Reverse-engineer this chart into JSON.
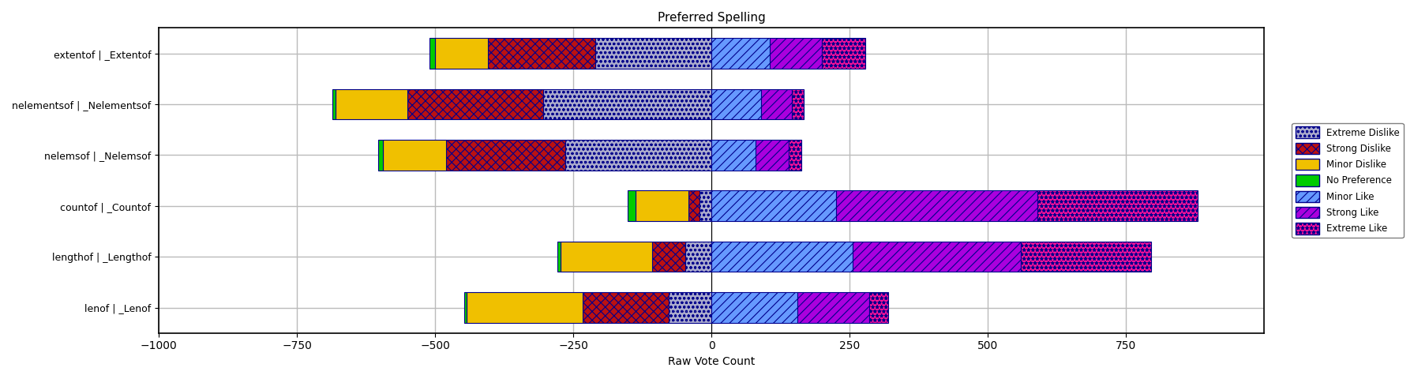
{
  "title": "Preferred Spelling",
  "xlabel": "Raw Vote Count",
  "categories": [
    "extentof | _Extentof",
    "nelementsof | _Nelementsof",
    "nelemsof | _Nelemsof",
    "countof | _Countof",
    "lengthof | _Lengthof",
    "lenof | _Lenof"
  ],
  "segments": [
    {
      "label": "Extreme Dislike",
      "color": "#aaaacc",
      "hatch": "ooo",
      "edge_color": "#00008b",
      "values": [
        -210,
        -305,
        -265,
        -22,
        -48,
        -78
      ]
    },
    {
      "label": "Strong Dislike",
      "color": "#bb1111",
      "hatch": "xxx",
      "edge_color": "#00008b",
      "values": [
        -195,
        -245,
        -215,
        -20,
        -60,
        -155
      ]
    },
    {
      "label": "Minor Dislike",
      "color": "#f0c000",
      "hatch": "",
      "edge_color": "#00008b",
      "values": [
        -95,
        -130,
        -115,
        -95,
        -165,
        -210
      ]
    },
    {
      "label": "No Preference",
      "color": "#00cc00",
      "hatch": "",
      "edge_color": "#00008b",
      "values": [
        -10,
        -6,
        -8,
        -14,
        -6,
        -5
      ]
    },
    {
      "label": "Minor Like",
      "color": "#6699ff",
      "hatch": "///",
      "edge_color": "#00008b",
      "values": [
        105,
        90,
        80,
        225,
        255,
        155
      ]
    },
    {
      "label": "Strong Like",
      "color": "#aa00dd",
      "hatch": "///",
      "edge_color": "#00008b",
      "values": [
        95,
        55,
        60,
        365,
        305,
        130
      ]
    },
    {
      "label": "Extreme Like",
      "color": "#ff1199",
      "hatch": "***",
      "edge_color": "#00008b",
      "values": [
        78,
        22,
        22,
        290,
        235,
        35
      ]
    }
  ],
  "xlim": [
    -1000,
    1000
  ],
  "xticks": [
    -1000,
    -750,
    -500,
    -250,
    0,
    250,
    500,
    750
  ],
  "figsize": [
    17.91,
    4.8
  ],
  "dpi": 100,
  "background_color": "#ffffff",
  "grid_color": "#bbbbbb",
  "bar_height": 0.6,
  "hatch_lw": 0.8
}
